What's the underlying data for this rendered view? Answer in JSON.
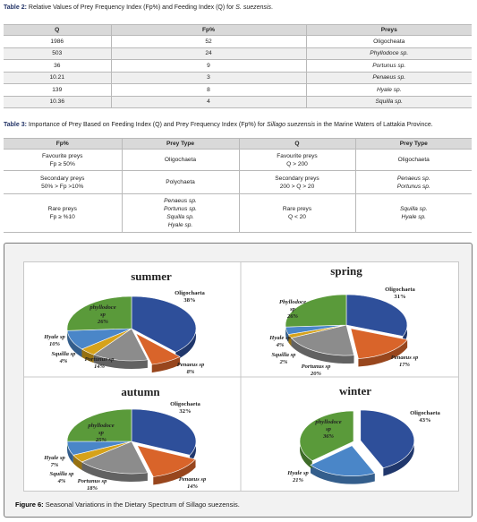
{
  "table2": {
    "caption_label": "Table 2:",
    "caption_text": " Relative Values of Prey Frequency Index (Fp%) and Feeding Index (Q) for ",
    "caption_species": "S. suezensis",
    "headers": [
      "Q",
      "Fp%",
      "Preys"
    ],
    "rows": [
      [
        "1986",
        "52",
        "Oligocheata"
      ],
      [
        "503",
        "24",
        "Phyllodoce sp."
      ],
      [
        "36",
        "9",
        "Portunus sp."
      ],
      [
        "10.21",
        "3",
        "Penaeus sp."
      ],
      [
        "139",
        "8",
        "Hyale sp."
      ],
      [
        "10.36",
        "4",
        "Squilla sp."
      ]
    ]
  },
  "table3": {
    "caption_label": "Table 3:",
    "caption_text": " Importance of Prey Based on Feeding Index (Q) and Prey Frequency Index (Fp%) for ",
    "caption_species": "Sillago suezensis",
    "caption_tail": " in the Marine Waters of Lattakia Province.",
    "headers": [
      "Fp%",
      "Prey Type",
      "Q",
      "Prey Type"
    ],
    "rows": [
      [
        [
          "Favourite preys",
          "Fp ≥ 50%"
        ],
        [
          "Oligochaeta"
        ],
        [
          "Favourite preys",
          "Q > 200"
        ],
        [
          "Oligochaeta"
        ]
      ],
      [
        [
          "Secondary preys",
          "50% > Fp >10%"
        ],
        [
          "Polychaeta"
        ],
        [
          "Secondary preys",
          "200 > Q > 20"
        ],
        [
          "Penaeus sp.",
          "Portunus sp."
        ]
      ],
      [
        [
          "Rare preys",
          "Fp ≥ %10"
        ],
        [
          "Penaeus sp.",
          "Portunus sp.",
          "Squilla sp.",
          "Hyale sp."
        ],
        [
          "Rare preys",
          "Q < 20"
        ],
        [
          "Squilla sp.",
          "Hyale sp."
        ]
      ]
    ]
  },
  "figure": {
    "caption_label": "Figure 6:",
    "caption_text": " Seasonal Variations in the Dietary Spectrum of Sillago suezensis."
  },
  "chart_data": [
    {
      "type": "pie",
      "title": "summer",
      "labels": [
        "Oligochaeta",
        "Penaeus sp",
        "Portunus sp",
        "Squilla sp",
        "Hyale sp",
        "phyllodoce sp"
      ],
      "values": [
        38,
        8,
        14,
        4,
        10,
        26
      ],
      "value_labels": [
        "38%",
        "8%",
        "14%",
        "4%",
        "10%",
        "26%"
      ],
      "colors": [
        "#2e4f9a",
        "#d9642a",
        "#8c8c8c",
        "#d6a21a",
        "#4a86c8",
        "#5a9a3a"
      ]
    },
    {
      "type": "pie",
      "title": "spring",
      "labels": [
        "Oligochaeta",
        "Penaeus sp",
        "Portunus sp",
        "Squilla sp",
        "Hyale sp",
        "Phyllodoce sp"
      ],
      "values": [
        31,
        17,
        20,
        2,
        4,
        26
      ],
      "value_labels": [
        "31%",
        "17%",
        "20%",
        "2%",
        "4%",
        "26%"
      ],
      "colors": [
        "#2e4f9a",
        "#d9642a",
        "#8c8c8c",
        "#d6a21a",
        "#4a86c8",
        "#5a9a3a"
      ]
    },
    {
      "type": "pie",
      "title": "autumn",
      "labels": [
        "Oligochaeta",
        "Penaeus sp",
        "Portunus sp",
        "Squilla sp",
        "Hyale sp",
        "phyllodoce sp"
      ],
      "values": [
        32,
        14,
        18,
        4,
        7,
        25
      ],
      "value_labels": [
        "32%",
        "14%",
        "18%",
        "4%",
        "7%",
        "25%"
      ],
      "colors": [
        "#2e4f9a",
        "#d9642a",
        "#8c8c8c",
        "#d6a21a",
        "#4a86c8",
        "#5a9a3a"
      ]
    },
    {
      "type": "pie",
      "title": "winter",
      "labels": [
        "Oligochaeta",
        "Hyale sp",
        "phyllodoce sp"
      ],
      "values": [
        43,
        21,
        36
      ],
      "value_labels": [
        "43%",
        "21%",
        "36%"
      ],
      "colors": [
        "#2e4f9a",
        "#4a86c8",
        "#5a9a3a"
      ]
    }
  ]
}
